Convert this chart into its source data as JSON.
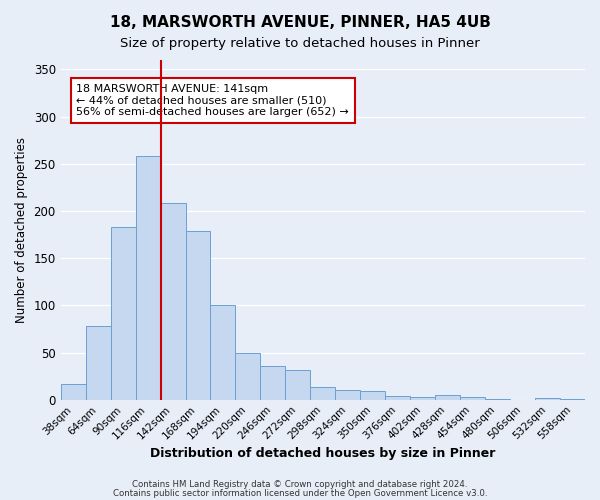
{
  "title": "18, MARSWORTH AVENUE, PINNER, HA5 4UB",
  "subtitle": "Size of property relative to detached houses in Pinner",
  "xlabel": "Distribution of detached houses by size in Pinner",
  "ylabel": "Number of detached properties",
  "bar_labels": [
    "38sqm",
    "64sqm",
    "90sqm",
    "116sqm",
    "142sqm",
    "168sqm",
    "194sqm",
    "220sqm",
    "246sqm",
    "272sqm",
    "298sqm",
    "324sqm",
    "350sqm",
    "376sqm",
    "402sqm",
    "428sqm",
    "454sqm",
    "480sqm",
    "506sqm",
    "532sqm",
    "558sqm"
  ],
  "bar_values": [
    17,
    78,
    183,
    258,
    208,
    179,
    100,
    50,
    36,
    32,
    13,
    10,
    9,
    4,
    3,
    5,
    3,
    1,
    0,
    2,
    1
  ],
  "bar_color": "#c5d8f0",
  "bar_edge_color": "#6aa0d4",
  "vline_x": 4,
  "vline_color": "#cc0000",
  "annotation_title": "18 MARSWORTH AVENUE: 141sqm",
  "annotation_line1": "← 44% of detached houses are smaller (510)",
  "annotation_line2": "56% of semi-detached houses are larger (652) →",
  "annotation_box_color": "#ffffff",
  "annotation_edge_color": "#cc0000",
  "ylim": [
    0,
    360
  ],
  "yticks": [
    0,
    50,
    100,
    150,
    200,
    250,
    300,
    350
  ],
  "background_color": "#e8eef8",
  "footer1": "Contains HM Land Registry data © Crown copyright and database right 2024.",
  "footer2": "Contains public sector information licensed under the Open Government Licence v3.0."
}
